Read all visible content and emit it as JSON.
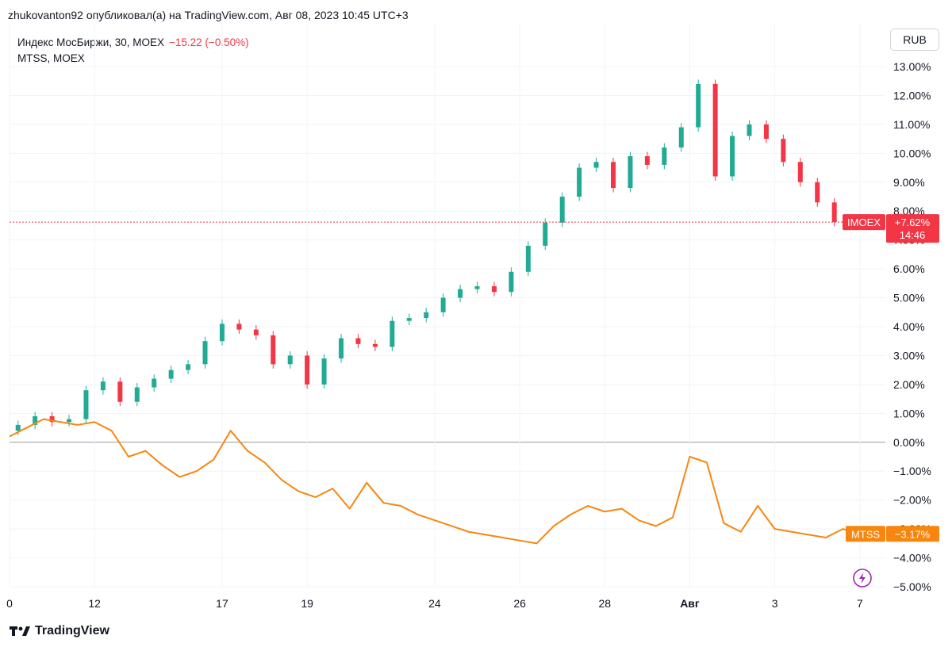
{
  "header": {
    "publication": "zhukovanton92 опубликовал(а) на TradingView.com, Авг 08, 2023 10:45 UTC+3"
  },
  "legend": {
    "main_symbol": "Индекс МосБиржи, 30, MOEX",
    "main_change": "−15.22 (−0.50%)",
    "compare_symbol": "MTSS, MOEX"
  },
  "currency_button": "RUB",
  "footer": {
    "brand": "TradingView"
  },
  "colors": {
    "up": "#22ab94",
    "down": "#f23645",
    "mtss": "#f7860e",
    "grid": "#f0f3fa",
    "zero_line": "#9598a1",
    "price_line": "#f23645",
    "lightning": "#9c27b0"
  },
  "chart_data": {
    "type": "line",
    "scale": "percent",
    "ylim": [
      -5,
      13.5
    ],
    "y_ticks": [
      "13.00%",
      "12.00%",
      "11.00%",
      "10.00%",
      "9.00%",
      "8.00%",
      "7.00%",
      "6.00%",
      "5.00%",
      "4.00%",
      "3.00%",
      "2.00%",
      "1.00%",
      "0.00%",
      "−1.00%",
      "−2.00%",
      "−3.00%",
      "−4.00%",
      "−5.00%"
    ],
    "x_ticks": [
      {
        "label": "0",
        "t": 0
      },
      {
        "label": "12",
        "t": 10
      },
      {
        "label": "17",
        "t": 25
      },
      {
        "label": "19",
        "t": 35
      },
      {
        "label": "24",
        "t": 50
      },
      {
        "label": "26",
        "t": 60
      },
      {
        "label": "28",
        "t": 70
      },
      {
        "label": "Авг",
        "t": 80,
        "bold": true
      },
      {
        "label": "3",
        "t": 90
      },
      {
        "label": "7",
        "t": 100
      }
    ],
    "grid": true,
    "series": [
      {
        "name": "IMOEX",
        "style": "candles",
        "last_label": "IMOEX",
        "last_value": 7.62,
        "last_value_label": "+7.62%",
        "countdown": "14:46",
        "x": [
          0,
          2,
          4,
          6,
          8,
          10,
          12,
          14,
          16,
          18,
          20,
          22,
          24,
          26,
          28,
          30,
          32,
          34,
          36,
          38,
          40,
          42,
          44,
          46,
          48,
          50,
          52,
          54,
          56,
          58,
          60,
          62,
          64,
          66,
          68,
          70,
          72,
          74,
          76,
          78,
          80,
          82,
          84,
          86,
          88,
          90,
          92,
          94,
          96,
          98,
          99,
          100,
          101,
          102
        ],
        "values": [
          0.4,
          0.6,
          0.9,
          0.7,
          0.8,
          1.8,
          2.1,
          1.4,
          1.9,
          2.2,
          2.5,
          2.7,
          3.5,
          4.1,
          3.9,
          3.7,
          2.7,
          3.0,
          2.0,
          2.9,
          3.6,
          3.4,
          3.3,
          4.2,
          4.3,
          4.5,
          5.0,
          5.3,
          5.4,
          5.2,
          5.9,
          6.8,
          7.6,
          8.5,
          9.5,
          9.7,
          8.8,
          9.9,
          9.6,
          10.2,
          10.9,
          12.4,
          9.2,
          10.6,
          11.0,
          10.5,
          9.7,
          9.0,
          8.3,
          7.62,
          7.62,
          7.62,
          7.62,
          7.62
        ]
      },
      {
        "name": "MTSS",
        "style": "line",
        "last_label": "MTSS",
        "last_value": -3.17,
        "last_value_label": "−3.17%",
        "x": [
          0,
          2,
          4,
          6,
          8,
          10,
          12,
          14,
          16,
          18,
          20,
          22,
          24,
          26,
          28,
          30,
          32,
          34,
          36,
          38,
          40,
          42,
          44,
          46,
          48,
          50,
          52,
          54,
          56,
          58,
          60,
          62,
          64,
          66,
          68,
          70,
          72,
          74,
          76,
          78,
          80,
          82,
          84,
          86,
          88,
          90,
          92,
          94,
          96,
          98,
          100,
          101,
          102
        ],
        "values": [
          0.2,
          0.5,
          0.8,
          0.7,
          0.6,
          0.7,
          0.4,
          -0.5,
          -0.3,
          -0.8,
          -1.2,
          -1.0,
          -0.6,
          0.4,
          -0.3,
          -0.7,
          -1.3,
          -1.7,
          -1.9,
          -1.6,
          -2.3,
          -1.4,
          -2.1,
          -2.2,
          -2.5,
          -2.7,
          -2.9,
          -3.1,
          -3.2,
          -3.3,
          -3.4,
          -3.5,
          -2.9,
          -2.5,
          -2.2,
          -2.4,
          -2.3,
          -2.7,
          -2.9,
          -2.6,
          -0.5,
          -0.7,
          -2.8,
          -3.1,
          -2.2,
          -3.0,
          -3.1,
          -3.2,
          -3.3,
          -3.0,
          -3.17,
          -3.17,
          -3.17
        ]
      }
    ]
  }
}
